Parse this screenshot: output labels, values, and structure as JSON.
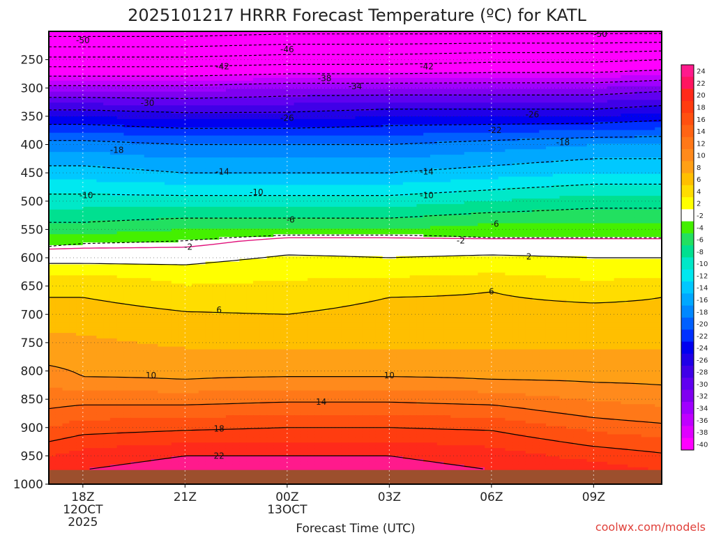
{
  "chart_data": {
    "type": "heatmap",
    "title": "2025101217 HRRR Forecast Temperature (ºC) for KATL",
    "xlabel": "Forecast Time (UTC)",
    "ylabel": "",
    "credit": "coolwx.com/models",
    "x_ticks": [
      {
        "hour": 18,
        "label": "18Z",
        "date": "12OCT",
        "year": "2025"
      },
      {
        "hour": 21,
        "label": "21Z",
        "date": "",
        "year": ""
      },
      {
        "hour": 24,
        "label": "00Z",
        "date": "13OCT",
        "year": ""
      },
      {
        "hour": 27,
        "label": "03Z",
        "date": "",
        "year": ""
      },
      {
        "hour": 30,
        "label": "06Z",
        "date": "",
        "year": ""
      },
      {
        "hour": 33,
        "label": "09Z",
        "date": "",
        "year": ""
      }
    ],
    "x_range_hours": [
      17,
      35
    ],
    "y_ticks_hPa": [
      250,
      300,
      350,
      400,
      450,
      500,
      550,
      600,
      650,
      700,
      750,
      800,
      850,
      900,
      950,
      1000
    ],
    "y_range_hPa": [
      200,
      1000
    ],
    "grid": true,
    "surface_pressure_hPa": 975,
    "colorbar": {
      "levels": [
        24,
        22,
        20,
        18,
        16,
        14,
        12,
        10,
        8,
        6,
        4,
        2,
        -2,
        -4,
        -6,
        -8,
        -10,
        -12,
        -14,
        -16,
        -18,
        -20,
        -22,
        -24,
        -26,
        -28,
        -30,
        -32,
        -34,
        -36,
        -38,
        -40
      ],
      "colors": [
        "#ff1a8c",
        "#ff1560",
        "#ff2a1a",
        "#ff3c10",
        "#ff5010",
        "#ff6414",
        "#ff7818",
        "#ff8a1c",
        "#ffa016",
        "#ffbf00",
        "#ffdd00",
        "#ffff00",
        "#ffffff",
        "#44f000",
        "#22e060",
        "#00e090",
        "#00e8c8",
        "#00e8f0",
        "#00c8ff",
        "#00a8ff",
        "#0088ff",
        "#0060ff",
        "#0030ff",
        "#0000f0",
        "#2000e8",
        "#4000e8",
        "#6000f0",
        "#8000f0",
        "#a000ff",
        "#c000ff",
        "#e000ff",
        "#ff00ff"
      ]
    },
    "profiles": [
      {
        "hour": 17,
        "temps": [
          [
            200,
            -56
          ],
          [
            250,
            -45
          ],
          [
            300,
            -33
          ],
          [
            350,
            -24
          ],
          [
            400,
            -17
          ],
          [
            450,
            -13
          ],
          [
            500,
            -9
          ],
          [
            550,
            -5
          ],
          [
            580,
            -2
          ],
          [
            600,
            1
          ],
          [
            640,
            5
          ],
          [
            700,
            7
          ],
          [
            790,
            10
          ],
          [
            850,
            13
          ],
          [
            900,
            16
          ],
          [
            950,
            20
          ],
          [
            975,
            21
          ]
        ]
      },
      {
        "hour": 18,
        "temps": [
          [
            200,
            -56
          ],
          [
            250,
            -45
          ],
          [
            300,
            -33
          ],
          [
            350,
            -24
          ],
          [
            400,
            -17
          ],
          [
            450,
            -13
          ],
          [
            500,
            -9
          ],
          [
            550,
            -5
          ],
          [
            575,
            -2
          ],
          [
            600,
            1
          ],
          [
            640,
            5
          ],
          [
            700,
            7
          ],
          [
            810,
            10
          ],
          [
            860,
            14
          ],
          [
            900,
            17
          ],
          [
            950,
            21
          ],
          [
            975,
            22
          ]
        ]
      },
      {
        "hour": 21,
        "temps": [
          [
            200,
            -56
          ],
          [
            250,
            -45
          ],
          [
            300,
            -33
          ],
          [
            350,
            -25
          ],
          [
            400,
            -18
          ],
          [
            450,
            -14
          ],
          [
            500,
            -9
          ],
          [
            550,
            -4
          ],
          [
            570,
            -2
          ],
          [
            600,
            1
          ],
          [
            625,
            3
          ],
          [
            695,
            6
          ],
          [
            760,
            8
          ],
          [
            815,
            10
          ],
          [
            860,
            14
          ],
          [
            905,
            18
          ],
          [
            950,
            22
          ],
          [
            975,
            23
          ]
        ]
      },
      {
        "hour": 24,
        "temps": [
          [
            200,
            -55
          ],
          [
            250,
            -44
          ],
          [
            300,
            -32
          ],
          [
            350,
            -25
          ],
          [
            400,
            -18
          ],
          [
            450,
            -14
          ],
          [
            500,
            -9
          ],
          [
            550,
            -4
          ],
          [
            560,
            -2
          ],
          [
            580,
            1
          ],
          [
            610,
            3
          ],
          [
            700,
            6
          ],
          [
            760,
            8
          ],
          [
            810,
            10
          ],
          [
            855,
            14
          ],
          [
            900,
            18
          ],
          [
            950,
            22
          ],
          [
            975,
            23
          ]
        ]
      },
      {
        "hour": 27,
        "temps": [
          [
            200,
            -55
          ],
          [
            250,
            -44
          ],
          [
            300,
            -32
          ],
          [
            350,
            -24
          ],
          [
            400,
            -18
          ],
          [
            450,
            -14
          ],
          [
            500,
            -9
          ],
          [
            550,
            -4
          ],
          [
            560,
            -2
          ],
          [
            580,
            1
          ],
          [
            600,
            2
          ],
          [
            670,
            6
          ],
          [
            760,
            8
          ],
          [
            810,
            10
          ],
          [
            855,
            14
          ],
          [
            900,
            18
          ],
          [
            950,
            22
          ],
          [
            975,
            23
          ]
        ]
      },
      {
        "hour": 30,
        "temps": [
          [
            200,
            -55
          ],
          [
            250,
            -43
          ],
          [
            300,
            -32
          ],
          [
            350,
            -24
          ],
          [
            400,
            -17
          ],
          [
            450,
            -13
          ],
          [
            500,
            -8
          ],
          [
            550,
            -3
          ],
          [
            565,
            -2
          ],
          [
            580,
            1
          ],
          [
            595,
            2
          ],
          [
            660,
            6
          ],
          [
            760,
            8
          ],
          [
            815,
            10
          ],
          [
            860,
            14
          ],
          [
            905,
            18
          ],
          [
            950,
            21
          ],
          [
            975,
            22
          ]
        ]
      },
      {
        "hour": 33,
        "temps": [
          [
            200,
            -55
          ],
          [
            250,
            -43
          ],
          [
            300,
            -32
          ],
          [
            350,
            -24
          ],
          [
            400,
            -16
          ],
          [
            450,
            -12
          ],
          [
            500,
            -7
          ],
          [
            550,
            -3
          ],
          [
            565,
            -2
          ],
          [
            580,
            1
          ],
          [
            600,
            2
          ],
          [
            680,
            6
          ],
          [
            760,
            8
          ],
          [
            820,
            10
          ],
          [
            870,
            13
          ],
          [
            920,
            17
          ],
          [
            960,
            20
          ],
          [
            975,
            21
          ]
        ]
      },
      {
        "hour": 35,
        "temps": [
          [
            200,
            -55
          ],
          [
            250,
            -42
          ],
          [
            300,
            -31
          ],
          [
            350,
            -23
          ],
          [
            400,
            -16
          ],
          [
            450,
            -12
          ],
          [
            500,
            -7
          ],
          [
            550,
            -3
          ],
          [
            565,
            -2
          ],
          [
            580,
            1
          ],
          [
            600,
            2
          ],
          [
            670,
            6
          ],
          [
            760,
            8
          ],
          [
            825,
            10
          ],
          [
            880,
            13
          ],
          [
            930,
            17
          ],
          [
            960,
            19
          ],
          [
            975,
            20
          ]
        ]
      }
    ],
    "contour_labels": [
      {
        "text": "-50",
        "hour": 18.0,
        "hPa": 216
      },
      {
        "text": "-50",
        "hour": 33.2,
        "hPa": 205
      },
      {
        "text": "-46",
        "hour": 24.0,
        "hPa": 232
      },
      {
        "text": "-42",
        "hour": 22.1,
        "hPa": 262
      },
      {
        "text": "-42",
        "hour": 28.1,
        "hPa": 262
      },
      {
        "text": "-38",
        "hour": 25.1,
        "hPa": 283
      },
      {
        "text": "-34",
        "hour": 26.0,
        "hPa": 297
      },
      {
        "text": "-30",
        "hour": 19.9,
        "hPa": 327
      },
      {
        "text": "-26",
        "hour": 24.0,
        "hPa": 353
      },
      {
        "text": "-26",
        "hour": 31.2,
        "hPa": 347
      },
      {
        "text": "-22",
        "hour": 30.1,
        "hPa": 375
      },
      {
        "text": "-18",
        "hour": 19.0,
        "hPa": 410
      },
      {
        "text": "-18",
        "hour": 32.1,
        "hPa": 396
      },
      {
        "text": "-14",
        "hour": 22.1,
        "hPa": 448
      },
      {
        "text": "-14",
        "hour": 28.1,
        "hPa": 448
      },
      {
        "text": "-10",
        "hour": 18.1,
        "hPa": 490
      },
      {
        "text": "-10",
        "hour": 23.1,
        "hPa": 484
      },
      {
        "text": "-10",
        "hour": 28.1,
        "hPa": 490
      },
      {
        "text": "-6",
        "hour": 24.1,
        "hPa": 533
      },
      {
        "text": "-6",
        "hour": 30.1,
        "hPa": 540
      },
      {
        "text": "-2",
        "hour": 21.1,
        "hPa": 581
      },
      {
        "text": "-2",
        "hour": 29.1,
        "hPa": 570
      },
      {
        "text": "2",
        "hour": 31.1,
        "hPa": 598
      },
      {
        "text": "6",
        "hour": 22.0,
        "hPa": 692
      },
      {
        "text": "6",
        "hour": 30.0,
        "hPa": 660
      },
      {
        "text": "10",
        "hour": 20.0,
        "hPa": 808
      },
      {
        "text": "10",
        "hour": 27.0,
        "hPa": 808
      },
      {
        "text": "14",
        "hour": 25.0,
        "hPa": 855
      },
      {
        "text": "18",
        "hour": 22.0,
        "hPa": 902
      },
      {
        "text": "22",
        "hour": 22.0,
        "hPa": 950
      }
    ]
  }
}
